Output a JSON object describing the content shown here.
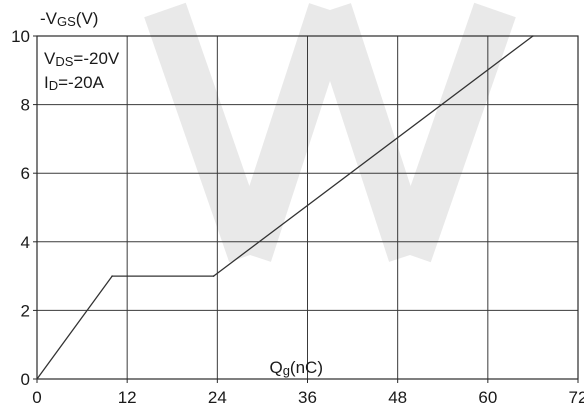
{
  "chart_data": {
    "type": "line",
    "title": "",
    "ylabel": {
      "prefix": "-V",
      "sub": "GS",
      "suffix": "(V)"
    },
    "xlabel": {
      "prefix": "Q",
      "sub": "g",
      "suffix": "(nC)"
    },
    "xlim": [
      0,
      72
    ],
    "ylim": [
      0,
      10
    ],
    "xticks": [
      0,
      12,
      24,
      36,
      48,
      60,
      72
    ],
    "yticks": [
      0,
      2,
      4,
      6,
      8,
      10
    ],
    "grid": true,
    "annotations": [
      {
        "prefix": "V",
        "sub": "DS",
        "suffix": "=-20V"
      },
      {
        "prefix": "I",
        "sub": "D",
        "suffix": "=-20A"
      }
    ],
    "series": [
      {
        "x": [
          0,
          10,
          23.5,
          66
        ],
        "y": [
          0,
          3,
          3,
          10
        ],
        "color": "#333333"
      }
    ]
  }
}
